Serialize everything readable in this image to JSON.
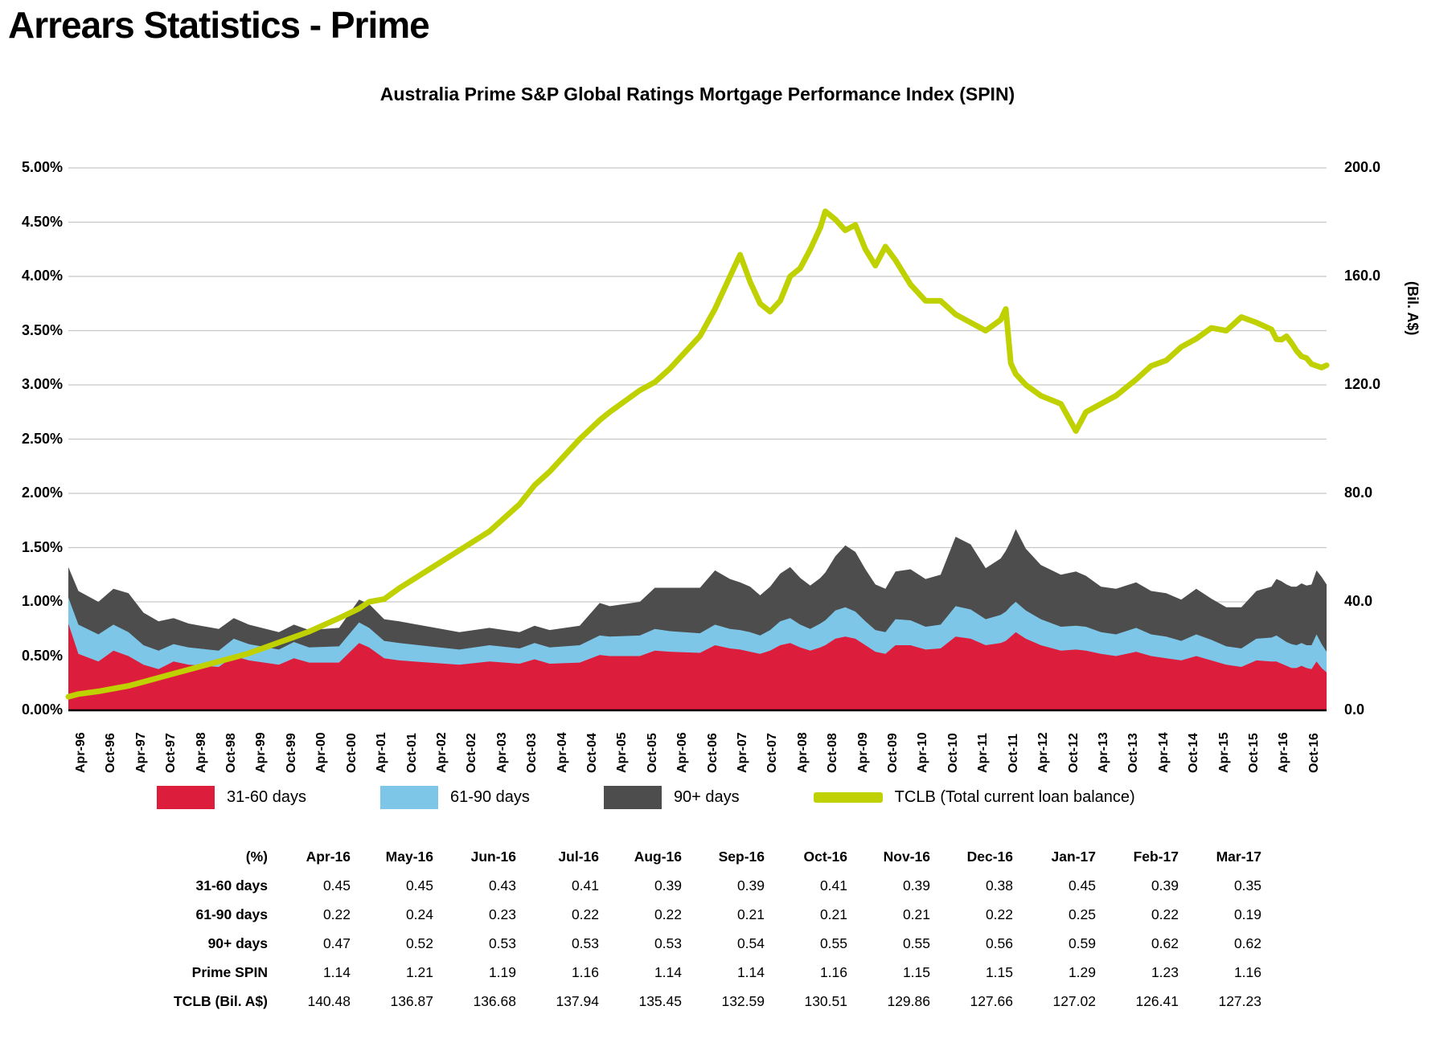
{
  "page": {
    "title": "Arrears Statistics - Prime",
    "background": "#FFFFFF"
  },
  "chart": {
    "title": "Australia Prime S&P Global Ratings Mortgage Performance Index (SPIN)",
    "left_axis": {
      "ticks": [
        "0.00%",
        "0.50%",
        "1.00%",
        "1.50%",
        "2.00%",
        "2.50%",
        "3.00%",
        "3.50%",
        "4.00%",
        "4.50%",
        "5.00%"
      ]
    },
    "right_axis": {
      "ticks": [
        "0.0",
        "40.0",
        "80.0",
        "120.0",
        "160.0",
        "200.0"
      ],
      "title": "(Bil. A$)"
    },
    "x_axis": {
      "ticks": [
        "Apr-96",
        "Oct-96",
        "Apr-97",
        "Oct-97",
        "Apr-98",
        "Oct-98",
        "Apr-99",
        "Oct-99",
        "Apr-00",
        "Oct-00",
        "Apr-01",
        "Oct-01",
        "Apr-02",
        "Oct-02",
        "Apr-03",
        "Oct-03",
        "Apr-04",
        "Oct-04",
        "Apr-05",
        "Oct-05",
        "Apr-06",
        "Oct-06",
        "Apr-07",
        "Oct-07",
        "Apr-08",
        "Oct-08",
        "Apr-09",
        "Oct-09",
        "Apr-10",
        "Oct-10",
        "Apr-11",
        "Oct-11",
        "Apr-12",
        "Oct-12",
        "Apr-13",
        "Oct-13",
        "Apr-14",
        "Oct-14",
        "Apr-15",
        "Oct-15",
        "Apr-16",
        "Oct-16"
      ]
    },
    "legend": [
      {
        "label": "31-60 days",
        "color": "#DC1E3C",
        "type": "box"
      },
      {
        "label": "61-90 days",
        "color": "#7DC6E8",
        "type": "box"
      },
      {
        "label": "90+ days",
        "color": "#4D4D4D",
        "type": "box"
      },
      {
        "label": "TCLB (Total current loan balance)",
        "color": "#BFD100",
        "type": "line"
      }
    ]
  },
  "chart_data": {
    "type": "area",
    "subtype": "stacked-area-with-line",
    "title": "Australia Prime S&P Global Ratings Mortgage Performance Index (SPIN)",
    "stacked_series": [
      "31-60 days",
      "61-90 days",
      "90+ days"
    ],
    "line_series": "TCLB (Total current loan balance)",
    "ylabel_left": "%",
    "ylabel_right": "(Bil. A$)",
    "left_axis_range": [
      0,
      5
    ],
    "right_axis_range": [
      0,
      200
    ],
    "grid": true,
    "legend_position": "bottom",
    "samples": [
      {
        "date": "Apr-96",
        "d31_60": 0.8,
        "d61_90": 0.24,
        "d90p": 0.28,
        "tclb": 5
      },
      {
        "date": "Jun-96",
        "d31_60": 0.52,
        "d61_90": 0.27,
        "d90p": 0.31,
        "tclb": 6
      },
      {
        "date": "Oct-96",
        "d31_60": 0.45,
        "d61_90": 0.25,
        "d90p": 0.3,
        "tclb": 7
      },
      {
        "date": "Jan-97",
        "d31_60": 0.55,
        "d61_90": 0.24,
        "d90p": 0.33,
        "tclb": 8
      },
      {
        "date": "Apr-97",
        "d31_60": 0.5,
        "d61_90": 0.22,
        "d90p": 0.36,
        "tclb": 9
      },
      {
        "date": "Jul-97",
        "d31_60": 0.42,
        "d61_90": 0.18,
        "d90p": 0.3,
        "tclb": 10.5
      },
      {
        "date": "Oct-97",
        "d31_60": 0.38,
        "d61_90": 0.17,
        "d90p": 0.27,
        "tclb": 12
      },
      {
        "date": "Jan-98",
        "d31_60": 0.45,
        "d61_90": 0.16,
        "d90p": 0.24,
        "tclb": 13.5
      },
      {
        "date": "Apr-98",
        "d31_60": 0.42,
        "d61_90": 0.16,
        "d90p": 0.22,
        "tclb": 15
      },
      {
        "date": "Oct-98",
        "d31_60": 0.4,
        "d61_90": 0.15,
        "d90p": 0.2,
        "tclb": 18
      },
      {
        "date": "Jan-99",
        "d31_60": 0.5,
        "d61_90": 0.16,
        "d90p": 0.19,
        "tclb": 19.5
      },
      {
        "date": "Apr-99",
        "d31_60": 0.46,
        "d61_90": 0.15,
        "d90p": 0.18,
        "tclb": 21
      },
      {
        "date": "Oct-99",
        "d31_60": 0.42,
        "d61_90": 0.14,
        "d90p": 0.16,
        "tclb": 25
      },
      {
        "date": "Jan-00",
        "d31_60": 0.48,
        "d61_90": 0.15,
        "d90p": 0.16,
        "tclb": 27
      },
      {
        "date": "Apr-00",
        "d31_60": 0.44,
        "d61_90": 0.14,
        "d90p": 0.16,
        "tclb": 29
      },
      {
        "date": "Oct-00",
        "d31_60": 0.44,
        "d61_90": 0.15,
        "d90p": 0.17,
        "tclb": 34
      },
      {
        "date": "Feb-01",
        "d31_60": 0.62,
        "d61_90": 0.19,
        "d90p": 0.21,
        "tclb": 37.5
      },
      {
        "date": "Apr-01",
        "d31_60": 0.58,
        "d61_90": 0.18,
        "d90p": 0.22,
        "tclb": 40
      },
      {
        "date": "Jul-01",
        "d31_60": 0.48,
        "d61_90": 0.16,
        "d90p": 0.2,
        "tclb": 41
      },
      {
        "date": "Oct-01",
        "d31_60": 0.46,
        "d61_90": 0.16,
        "d90p": 0.2,
        "tclb": 45
      },
      {
        "date": "Apr-02",
        "d31_60": 0.44,
        "d61_90": 0.15,
        "d90p": 0.18,
        "tclb": 52
      },
      {
        "date": "Oct-02",
        "d31_60": 0.42,
        "d61_90": 0.14,
        "d90p": 0.16,
        "tclb": 59
      },
      {
        "date": "Apr-03",
        "d31_60": 0.45,
        "d61_90": 0.15,
        "d90p": 0.16,
        "tclb": 66
      },
      {
        "date": "Oct-03",
        "d31_60": 0.43,
        "d61_90": 0.14,
        "d90p": 0.15,
        "tclb": 76
      },
      {
        "date": "Jan-04",
        "d31_60": 0.47,
        "d61_90": 0.15,
        "d90p": 0.16,
        "tclb": 83
      },
      {
        "date": "Apr-04",
        "d31_60": 0.43,
        "d61_90": 0.15,
        "d90p": 0.16,
        "tclb": 88
      },
      {
        "date": "Oct-04",
        "d31_60": 0.44,
        "d61_90": 0.16,
        "d90p": 0.18,
        "tclb": 100
      },
      {
        "date": "Feb-05",
        "d31_60": 0.51,
        "d61_90": 0.18,
        "d90p": 0.3,
        "tclb": 107
      },
      {
        "date": "Apr-05",
        "d31_60": 0.5,
        "d61_90": 0.18,
        "d90p": 0.28,
        "tclb": 110
      },
      {
        "date": "Oct-05",
        "d31_60": 0.5,
        "d61_90": 0.19,
        "d90p": 0.31,
        "tclb": 118
      },
      {
        "date": "Jan-06",
        "d31_60": 0.55,
        "d61_90": 0.2,
        "d90p": 0.38,
        "tclb": 121
      },
      {
        "date": "Apr-06",
        "d31_60": 0.54,
        "d61_90": 0.19,
        "d90p": 0.4,
        "tclb": 126
      },
      {
        "date": "Oct-06",
        "d31_60": 0.53,
        "d61_90": 0.18,
        "d90p": 0.42,
        "tclb": 138
      },
      {
        "date": "Jan-07",
        "d31_60": 0.6,
        "d61_90": 0.19,
        "d90p": 0.5,
        "tclb": 148
      },
      {
        "date": "Apr-07",
        "d31_60": 0.57,
        "d61_90": 0.18,
        "d90p": 0.46,
        "tclb": 160
      },
      {
        "date": "Jun-07",
        "d31_60": 0.56,
        "d61_90": 0.18,
        "d90p": 0.44,
        "tclb": 168
      },
      {
        "date": "Aug-07",
        "d31_60": 0.54,
        "d61_90": 0.18,
        "d90p": 0.42,
        "tclb": 158
      },
      {
        "date": "Oct-07",
        "d31_60": 0.52,
        "d61_90": 0.17,
        "d90p": 0.37,
        "tclb": 150
      },
      {
        "date": "Dec-07",
        "d31_60": 0.55,
        "d61_90": 0.19,
        "d90p": 0.4,
        "tclb": 147
      },
      {
        "date": "Feb-08",
        "d31_60": 0.6,
        "d61_90": 0.22,
        "d90p": 0.44,
        "tclb": 151
      },
      {
        "date": "Apr-08",
        "d31_60": 0.62,
        "d61_90": 0.23,
        "d90p": 0.47,
        "tclb": 160
      },
      {
        "date": "Jun-08",
        "d31_60": 0.58,
        "d61_90": 0.21,
        "d90p": 0.43,
        "tclb": 163
      },
      {
        "date": "Aug-08",
        "d31_60": 0.55,
        "d61_90": 0.2,
        "d90p": 0.4,
        "tclb": 170
      },
      {
        "date": "Oct-08",
        "d31_60": 0.58,
        "d61_90": 0.22,
        "d90p": 0.42,
        "tclb": 178
      },
      {
        "date": "Nov-08",
        "d31_60": 0.6,
        "d61_90": 0.23,
        "d90p": 0.44,
        "tclb": 184
      },
      {
        "date": "Jan-09",
        "d31_60": 0.66,
        "d61_90": 0.26,
        "d90p": 0.5,
        "tclb": 181
      },
      {
        "date": "Mar-09",
        "d31_60": 0.68,
        "d61_90": 0.27,
        "d90p": 0.57,
        "tclb": 177
      },
      {
        "date": "May-09",
        "d31_60": 0.66,
        "d61_90": 0.25,
        "d90p": 0.55,
        "tclb": 179
      },
      {
        "date": "Jul-09",
        "d31_60": 0.6,
        "d61_90": 0.22,
        "d90p": 0.48,
        "tclb": 170
      },
      {
        "date": "Sep-09",
        "d31_60": 0.54,
        "d61_90": 0.2,
        "d90p": 0.42,
        "tclb": 164
      },
      {
        "date": "Nov-09",
        "d31_60": 0.52,
        "d61_90": 0.2,
        "d90p": 0.4,
        "tclb": 171
      },
      {
        "date": "Jan-10",
        "d31_60": 0.6,
        "d61_90": 0.24,
        "d90p": 0.44,
        "tclb": 166
      },
      {
        "date": "Apr-10",
        "d31_60": 0.6,
        "d61_90": 0.23,
        "d90p": 0.47,
        "tclb": 157
      },
      {
        "date": "Jul-10",
        "d31_60": 0.56,
        "d61_90": 0.21,
        "d90p": 0.44,
        "tclb": 151
      },
      {
        "date": "Oct-10",
        "d31_60": 0.57,
        "d61_90": 0.22,
        "d90p": 0.46,
        "tclb": 151
      },
      {
        "date": "Jan-11",
        "d31_60": 0.68,
        "d61_90": 0.28,
        "d90p": 0.64,
        "tclb": 146
      },
      {
        "date": "Apr-11",
        "d31_60": 0.66,
        "d61_90": 0.27,
        "d90p": 0.6,
        "tclb": 143
      },
      {
        "date": "Jul-11",
        "d31_60": 0.6,
        "d61_90": 0.24,
        "d90p": 0.47,
        "tclb": 140
      },
      {
        "date": "Oct-11",
        "d31_60": 0.62,
        "d61_90": 0.26,
        "d90p": 0.52,
        "tclb": 144
      },
      {
        "date": "Nov-11",
        "d31_60": 0.64,
        "d61_90": 0.27,
        "d90p": 0.56,
        "tclb": 148
      },
      {
        "date": "Dec-11",
        "d31_60": 0.68,
        "d61_90": 0.28,
        "d90p": 0.6,
        "tclb": 128
      },
      {
        "date": "Jan-12",
        "d31_60": 0.72,
        "d61_90": 0.28,
        "d90p": 0.67,
        "tclb": 124
      },
      {
        "date": "Mar-12",
        "d31_60": 0.66,
        "d61_90": 0.26,
        "d90p": 0.57,
        "tclb": 120
      },
      {
        "date": "Jun-12",
        "d31_60": 0.6,
        "d61_90": 0.24,
        "d90p": 0.5,
        "tclb": 116
      },
      {
        "date": "Oct-12",
        "d31_60": 0.55,
        "d61_90": 0.22,
        "d90p": 0.48,
        "tclb": 113
      },
      {
        "date": "Jan-13",
        "d31_60": 0.56,
        "d61_90": 0.22,
        "d90p": 0.5,
        "tclb": 103
      },
      {
        "date": "Mar-13",
        "d31_60": 0.55,
        "d61_90": 0.22,
        "d90p": 0.47,
        "tclb": 110
      },
      {
        "date": "Jun-13",
        "d31_60": 0.52,
        "d61_90": 0.2,
        "d90p": 0.42,
        "tclb": 113
      },
      {
        "date": "Sep-13",
        "d31_60": 0.5,
        "d61_90": 0.2,
        "d90p": 0.42,
        "tclb": 116
      },
      {
        "date": "Jan-14",
        "d31_60": 0.54,
        "d61_90": 0.22,
        "d90p": 0.42,
        "tclb": 122
      },
      {
        "date": "Apr-14",
        "d31_60": 0.5,
        "d61_90": 0.2,
        "d90p": 0.4,
        "tclb": 127
      },
      {
        "date": "Jul-14",
        "d31_60": 0.48,
        "d61_90": 0.2,
        "d90p": 0.4,
        "tclb": 129
      },
      {
        "date": "Oct-14",
        "d31_60": 0.46,
        "d61_90": 0.18,
        "d90p": 0.38,
        "tclb": 134
      },
      {
        "date": "Jan-15",
        "d31_60": 0.5,
        "d61_90": 0.2,
        "d90p": 0.42,
        "tclb": 137
      },
      {
        "date": "Apr-15",
        "d31_60": 0.46,
        "d61_90": 0.19,
        "d90p": 0.38,
        "tclb": 141
      },
      {
        "date": "Jul-15",
        "d31_60": 0.42,
        "d61_90": 0.17,
        "d90p": 0.36,
        "tclb": 140
      },
      {
        "date": "Oct-15",
        "d31_60": 0.4,
        "d61_90": 0.17,
        "d90p": 0.38,
        "tclb": 145
      },
      {
        "date": "Jan-16",
        "d31_60": 0.46,
        "d61_90": 0.2,
        "d90p": 0.44,
        "tclb": 143
      },
      {
        "date": "Apr-16",
        "d31_60": 0.45,
        "d61_90": 0.22,
        "d90p": 0.47,
        "tclb": 140.48
      },
      {
        "date": "May-16",
        "d31_60": 0.45,
        "d61_90": 0.24,
        "d90p": 0.52,
        "tclb": 136.87
      },
      {
        "date": "Jun-16",
        "d31_60": 0.43,
        "d61_90": 0.23,
        "d90p": 0.53,
        "tclb": 136.68
      },
      {
        "date": "Jul-16",
        "d31_60": 0.41,
        "d61_90": 0.22,
        "d90p": 0.53,
        "tclb": 137.94
      },
      {
        "date": "Aug-16",
        "d31_60": 0.39,
        "d61_90": 0.22,
        "d90p": 0.53,
        "tclb": 135.45
      },
      {
        "date": "Sep-16",
        "d31_60": 0.39,
        "d61_90": 0.21,
        "d90p": 0.54,
        "tclb": 132.59
      },
      {
        "date": "Oct-16",
        "d31_60": 0.41,
        "d61_90": 0.21,
        "d90p": 0.55,
        "tclb": 130.51
      },
      {
        "date": "Nov-16",
        "d31_60": 0.39,
        "d61_90": 0.21,
        "d90p": 0.55,
        "tclb": 129.86
      },
      {
        "date": "Dec-16",
        "d31_60": 0.38,
        "d61_90": 0.22,
        "d90p": 0.56,
        "tclb": 127.66
      },
      {
        "date": "Jan-17",
        "d31_60": 0.45,
        "d61_90": 0.25,
        "d90p": 0.59,
        "tclb": 127.02
      },
      {
        "date": "Feb-17",
        "d31_60": 0.39,
        "d61_90": 0.22,
        "d90p": 0.62,
        "tclb": 126.41
      },
      {
        "date": "Mar-17",
        "d31_60": 0.35,
        "d61_90": 0.19,
        "d90p": 0.62,
        "tclb": 127.23
      }
    ]
  },
  "table": {
    "header": [
      "(%)",
      "Apr-16",
      "May-16",
      "Jun-16",
      "Jul-16",
      "Aug-16",
      "Sep-16",
      "Oct-16",
      "Nov-16",
      "Dec-16",
      "Jan-17",
      "Feb-17",
      "Mar-17"
    ],
    "rows": [
      {
        "label": "31-60 days",
        "values": [
          "0.45",
          "0.45",
          "0.43",
          "0.41",
          "0.39",
          "0.39",
          "0.41",
          "0.39",
          "0.38",
          "0.45",
          "0.39",
          "0.35"
        ]
      },
      {
        "label": "61-90 days",
        "values": [
          "0.22",
          "0.24",
          "0.23",
          "0.22",
          "0.22",
          "0.21",
          "0.21",
          "0.21",
          "0.22",
          "0.25",
          "0.22",
          "0.19"
        ]
      },
      {
        "label": "90+ days",
        "values": [
          "0.47",
          "0.52",
          "0.53",
          "0.53",
          "0.53",
          "0.54",
          "0.55",
          "0.55",
          "0.56",
          "0.59",
          "0.62",
          "0.62"
        ]
      },
      {
        "label": "Prime SPIN",
        "values": [
          "1.14",
          "1.21",
          "1.19",
          "1.16",
          "1.14",
          "1.14",
          "1.16",
          "1.15",
          "1.15",
          "1.29",
          "1.23",
          "1.16"
        ]
      },
      {
        "label": "TCLB (Bil. A$)",
        "values": [
          "140.48",
          "136.87",
          "136.68",
          "137.94",
          "135.45",
          "132.59",
          "130.51",
          "129.86",
          "127.66",
          "127.02",
          "126.41",
          "127.23"
        ]
      }
    ]
  },
  "colors": {
    "series_31_60": "#DC1E3C",
    "series_61_90": "#7DC6E8",
    "series_90p": "#4D4D4D",
    "series_tclb": "#BFD100",
    "gridline": "#C8C8C8",
    "axis": "#000000",
    "text": "#000000"
  }
}
